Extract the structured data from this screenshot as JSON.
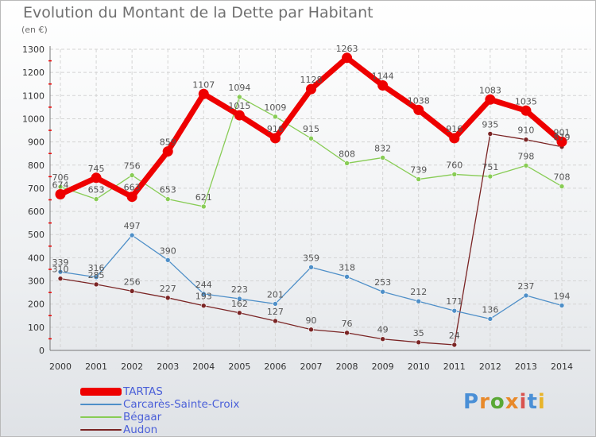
{
  "header": {
    "title": "Evolution du Montant de la Dette par Habitant",
    "unit": "(en €)"
  },
  "logo": {
    "text": "Proxiti",
    "colors": [
      "#4a8fd6",
      "#e8892a",
      "#5aa835",
      "#e8892a",
      "#d9534f",
      "#4a8fd6",
      "#e8b42a"
    ]
  },
  "chart_data": {
    "type": "line",
    "title": "Evolution du Montant de la Dette par Habitant",
    "subtitle": "(en €)",
    "xlabel": "",
    "ylabel": "",
    "x": [
      "2000",
      "2001",
      "2002",
      "2003",
      "2004",
      "2005",
      "2006",
      "2007",
      "2008",
      "2009",
      "2010",
      "2011",
      "2012",
      "2013",
      "2014"
    ],
    "y_ticks": [
      "0",
      "100",
      "200",
      "300",
      "400",
      "500",
      "600",
      "700",
      "800",
      "900",
      "1000",
      "1100",
      "1200",
      "1300"
    ],
    "ylim": [
      0,
      1300
    ],
    "grid": true,
    "legend_position": "bottom-left",
    "series": [
      {
        "name": "TARTAS",
        "color": "#ee0000",
        "width": 7,
        "values": [
          674,
          745,
          663,
          859,
          1107,
          1015,
          916,
          1128,
          1263,
          1144,
          1038,
          916,
          1083,
          1035,
          901
        ],
        "labels": [
          "674",
          "745",
          "663",
          "859",
          "1107",
          "1015",
          "916",
          "1128",
          "1263",
          "1144",
          "1038",
          "916",
          "1083",
          "1035",
          "901"
        ]
      },
      {
        "name": "Carcarès-Sainte-Croix",
        "color": "#4e8fc8",
        "width": 1.3,
        "values": [
          339,
          316,
          497,
          390,
          244,
          223,
          201,
          359,
          318,
          253,
          212,
          171,
          136,
          237,
          194
        ],
        "labels": [
          "339",
          "316",
          "497",
          "390",
          "244",
          "223",
          "201",
          "359",
          "318",
          "253",
          "212",
          "171",
          "136",
          "237",
          "194"
        ]
      },
      {
        "name": "Bégaar",
        "color": "#88cc55",
        "width": 1.3,
        "values": [
          706,
          653,
          756,
          653,
          621,
          1094,
          1009,
          915,
          808,
          832,
          739,
          760,
          751,
          798,
          708
        ],
        "labels": [
          "706",
          "653",
          "756",
          "653",
          "621",
          "1094",
          "1009",
          "915",
          "808",
          "832",
          "739",
          "760",
          "751",
          "798",
          "708"
        ]
      },
      {
        "name": "Audon",
        "color": "#7a2424",
        "width": 1.3,
        "values": [
          310,
          285,
          256,
          227,
          193,
          162,
          127,
          90,
          76,
          49,
          35,
          24,
          935,
          910,
          879
        ],
        "labels": [
          "310",
          "285",
          "256",
          "227",
          "193",
          "162",
          "127",
          "90",
          "76",
          "49",
          "35",
          "24",
          "935",
          "910",
          "879"
        ]
      }
    ]
  }
}
